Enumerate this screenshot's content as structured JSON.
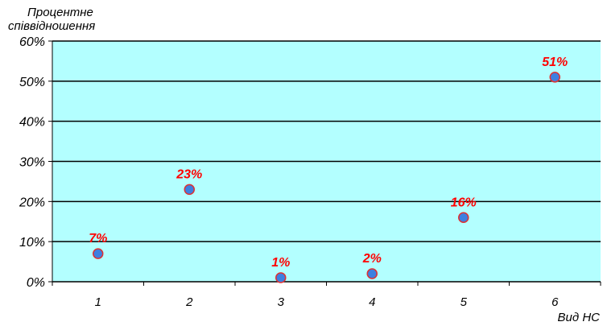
{
  "chart_data": {
    "type": "scatter",
    "title": "",
    "ylabel": [
      "Процентне",
      "співвідношення"
    ],
    "xlabel": "Вид НС",
    "x": [
      1,
      2,
      3,
      4,
      5,
      6
    ],
    "values": [
      7,
      23,
      1,
      2,
      16,
      51
    ],
    "data_labels": [
      "7%",
      "23%",
      "1%",
      "2%",
      "16%",
      "51%"
    ],
    "x_ticks": [
      "1",
      "2",
      "3",
      "4",
      "5",
      "6"
    ],
    "y_ticks": [
      "0%",
      "10%",
      "20%",
      "30%",
      "40%",
      "50%",
      "60%"
    ],
    "ylim": [
      0,
      60
    ],
    "grid": true,
    "legend": "none",
    "colors": {
      "plot_background": "#b3ffff",
      "marker_fill": "#3d7fe0",
      "marker_edge": "#e03030",
      "data_label": "#ff0000",
      "grid": "#000000"
    }
  }
}
